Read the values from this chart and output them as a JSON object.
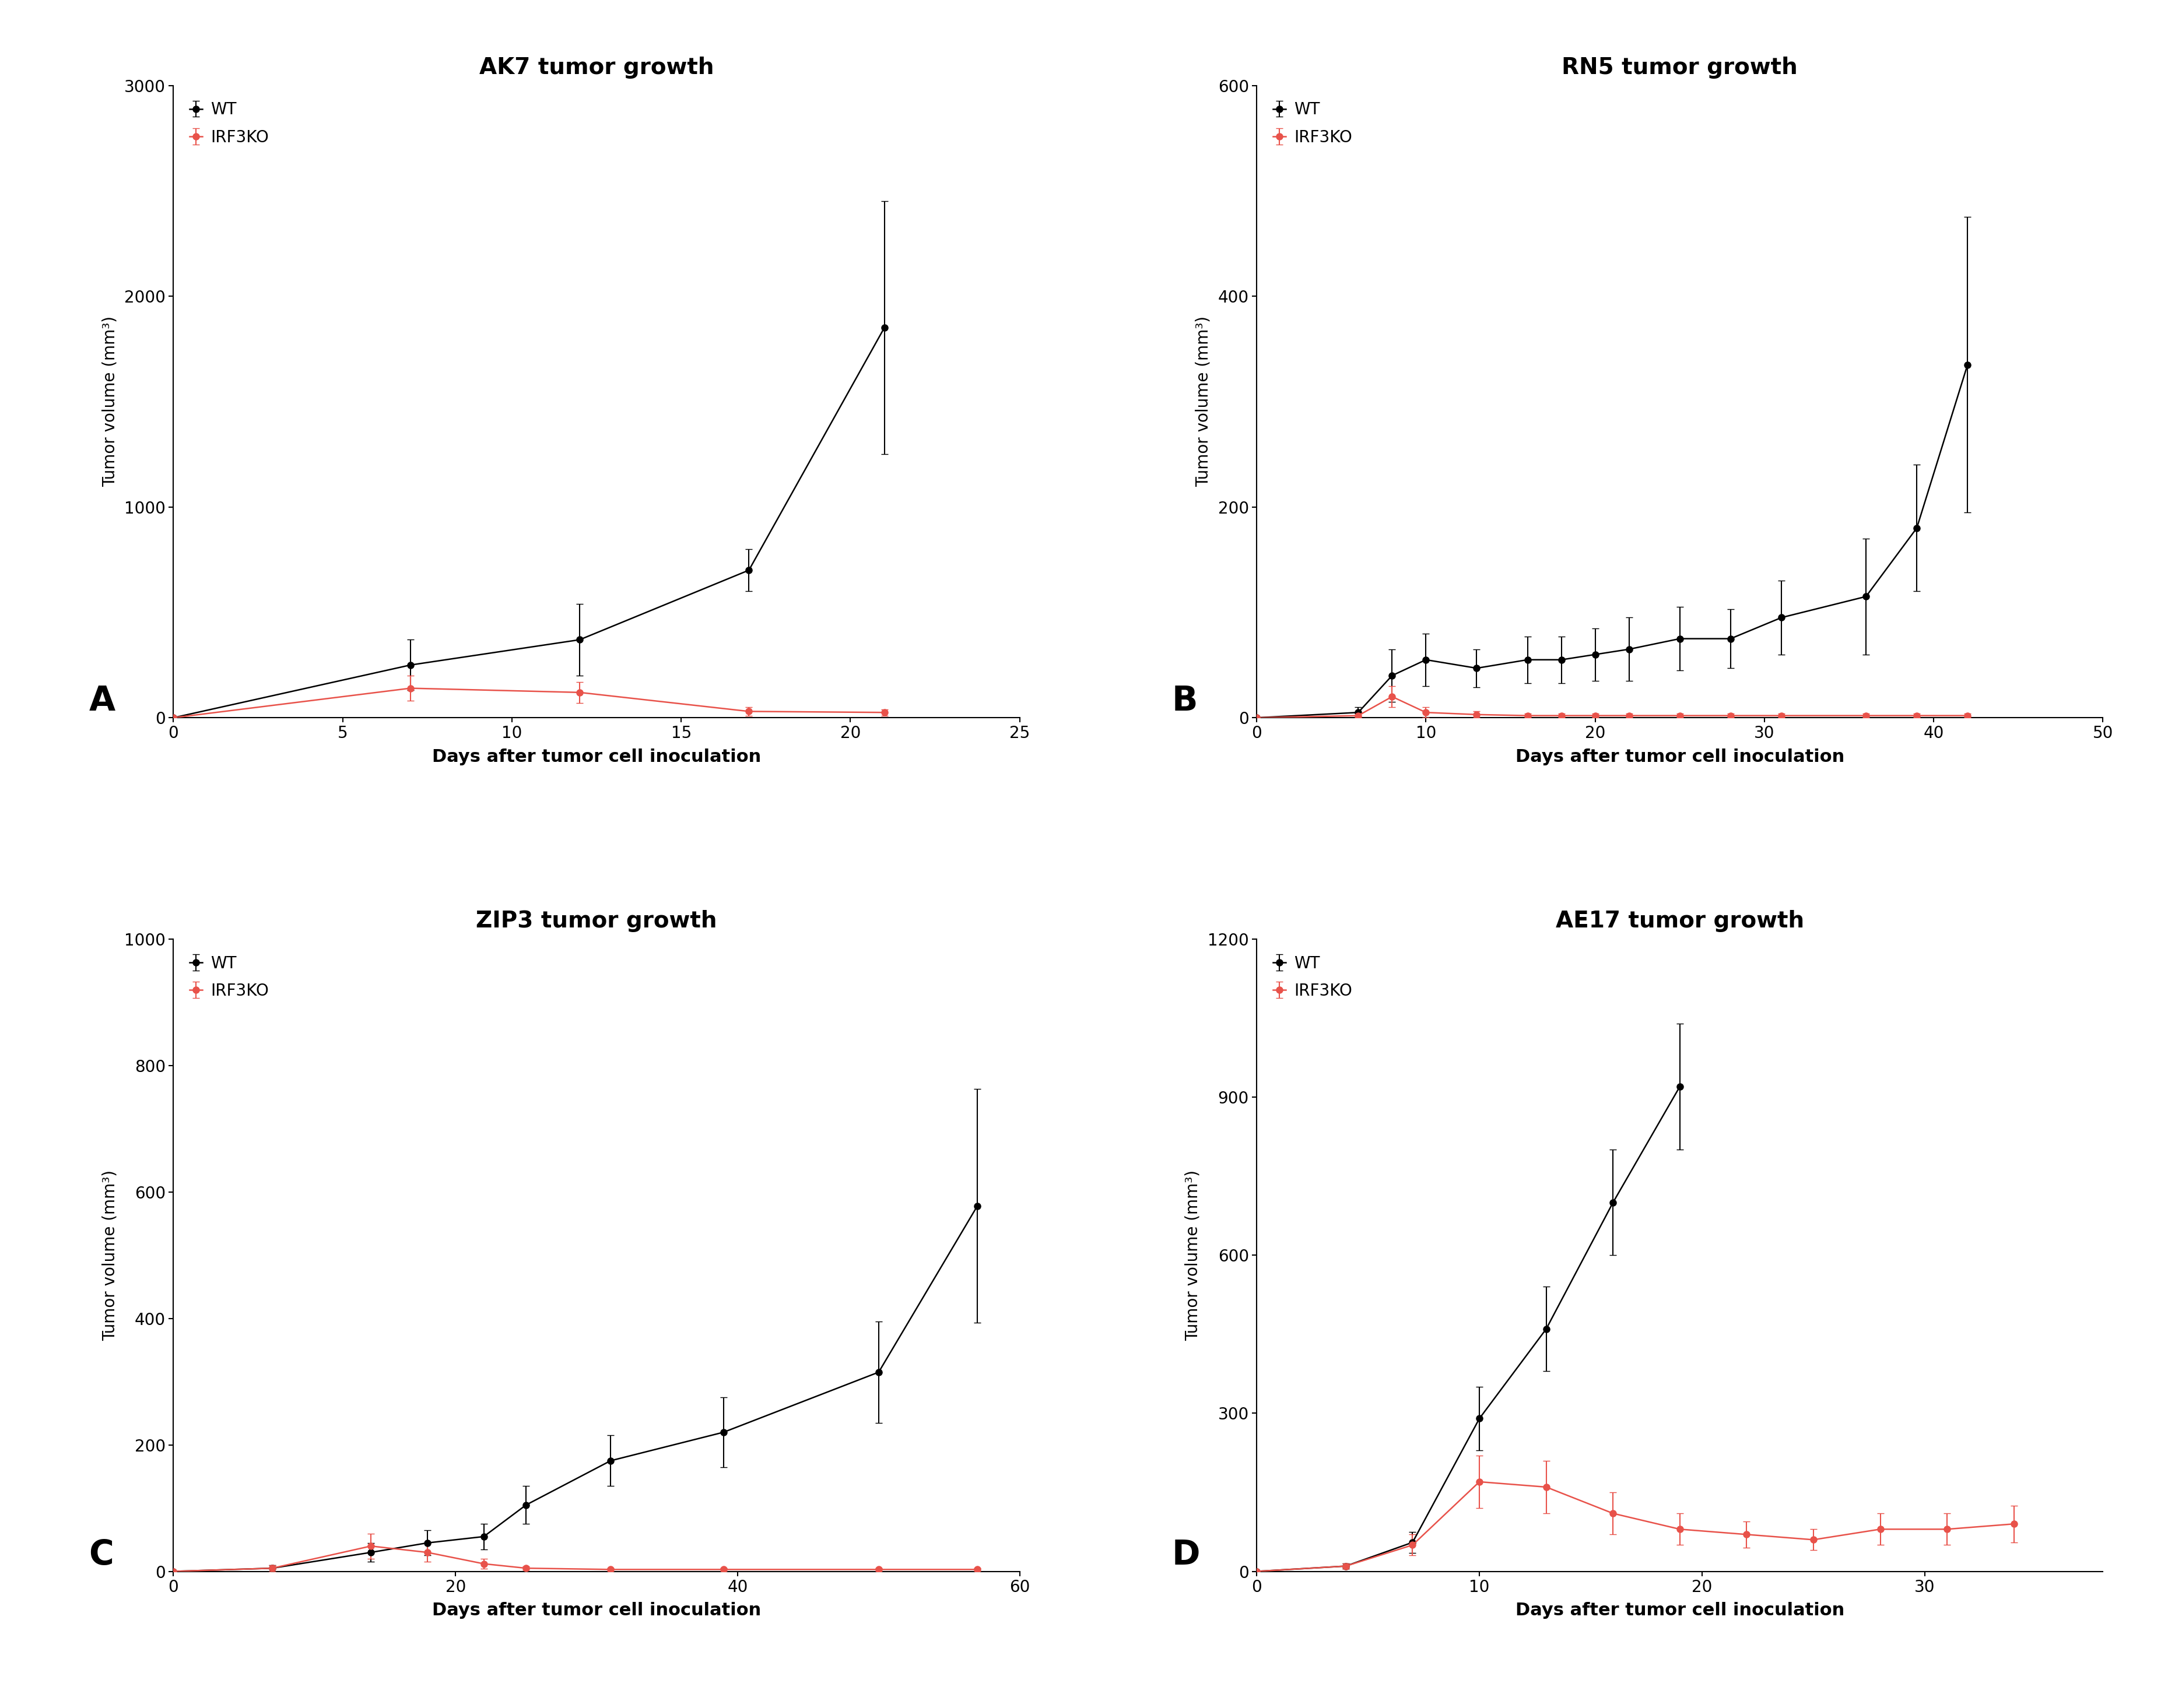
{
  "panels": [
    {
      "title": "AK7 tumor growth",
      "label": "A",
      "xlim": [
        0,
        25
      ],
      "ylim": [
        0,
        3000
      ],
      "xticks": [
        0,
        5,
        10,
        15,
        20,
        25
      ],
      "yticks": [
        0,
        1000,
        2000,
        3000
      ],
      "wt": {
        "x": [
          0,
          7,
          12,
          17,
          21
        ],
        "y": [
          0,
          250,
          370,
          700,
          1850
        ],
        "yerr": [
          0,
          120,
          170,
          100,
          600
        ]
      },
      "ko": {
        "x": [
          0,
          7,
          12,
          17,
          21
        ],
        "y": [
          0,
          140,
          120,
          30,
          25
        ],
        "yerr": [
          0,
          60,
          50,
          20,
          15
        ]
      }
    },
    {
      "title": "RN5 tumor growth",
      "label": "B",
      "xlim": [
        0,
        50
      ],
      "ylim": [
        0,
        600
      ],
      "xticks": [
        0,
        10,
        20,
        30,
        40,
        50
      ],
      "yticks": [
        0,
        200,
        400,
        600
      ],
      "wt": {
        "x": [
          0,
          6,
          8,
          10,
          13,
          16,
          18,
          20,
          22,
          25,
          28,
          31,
          36,
          39,
          42
        ],
        "y": [
          0,
          5,
          40,
          55,
          47,
          55,
          55,
          60,
          65,
          75,
          75,
          95,
          115,
          180,
          335
        ],
        "yerr": [
          0,
          5,
          25,
          25,
          18,
          22,
          22,
          25,
          30,
          30,
          28,
          35,
          55,
          60,
          140
        ]
      },
      "ko": {
        "x": [
          0,
          6,
          8,
          10,
          13,
          16,
          18,
          20,
          22,
          25,
          28,
          31,
          36,
          39,
          42
        ],
        "y": [
          0,
          2,
          20,
          5,
          3,
          2,
          2,
          2,
          2,
          2,
          2,
          2,
          2,
          2,
          2
        ],
        "yerr": [
          0,
          2,
          10,
          5,
          3,
          2,
          2,
          2,
          2,
          2,
          2,
          2,
          2,
          2,
          2
        ]
      }
    },
    {
      "title": "ZIP3 tumor growth",
      "label": "C",
      "xlim": [
        0,
        60
      ],
      "ylim": [
        0,
        1000
      ],
      "xticks": [
        0,
        20,
        40,
        60
      ],
      "yticks": [
        0,
        200,
        400,
        600,
        800,
        1000
      ],
      "wt": {
        "x": [
          0,
          7,
          14,
          18,
          22,
          25,
          31,
          39,
          50,
          57
        ],
        "y": [
          0,
          5,
          30,
          45,
          55,
          105,
          175,
          220,
          315,
          578
        ],
        "yerr": [
          0,
          5,
          15,
          20,
          20,
          30,
          40,
          55,
          80,
          185
        ]
      },
      "ko": {
        "x": [
          0,
          7,
          14,
          18,
          22,
          25,
          31,
          39,
          50,
          57
        ],
        "y": [
          0,
          5,
          40,
          30,
          12,
          5,
          3,
          3,
          3,
          3
        ],
        "yerr": [
          0,
          5,
          20,
          15,
          8,
          3,
          2,
          2,
          2,
          2
        ]
      }
    },
    {
      "title": "AE17 tumor growth",
      "label": "D",
      "xlim": [
        0,
        38
      ],
      "ylim": [
        0,
        1200
      ],
      "xticks": [
        0,
        10,
        20,
        30
      ],
      "yticks": [
        0,
        300,
        600,
        900,
        1200
      ],
      "wt": {
        "x": [
          0,
          4,
          7,
          10,
          13,
          16,
          19
        ],
        "y": [
          0,
          10,
          55,
          290,
          460,
          700,
          920
        ],
        "yerr": [
          0,
          5,
          20,
          60,
          80,
          100,
          120
        ]
      },
      "ko": {
        "x": [
          0,
          4,
          7,
          10,
          13,
          16,
          19,
          22,
          25,
          28,
          31,
          34
        ],
        "y": [
          0,
          10,
          50,
          170,
          160,
          110,
          80,
          70,
          60,
          80,
          80,
          90
        ],
        "yerr": [
          0,
          5,
          20,
          50,
          50,
          40,
          30,
          25,
          20,
          30,
          30,
          35
        ]
      }
    }
  ],
  "wt_color": "#000000",
  "ko_color": "#e8524a",
  "xlabel": "Days after tumor cell inoculation",
  "ylabel": "Tumor volume (mm³)",
  "marker_size": 8,
  "line_width": 1.8,
  "cap_size": 4,
  "elinewidth": 1.5,
  "background_color": "#ffffff",
  "title_fontsize": 28,
  "xlabel_fontsize": 22,
  "ylabel_fontsize": 20,
  "tick_fontsize": 20,
  "legend_fontsize": 20,
  "panel_label_fontsize": 42
}
